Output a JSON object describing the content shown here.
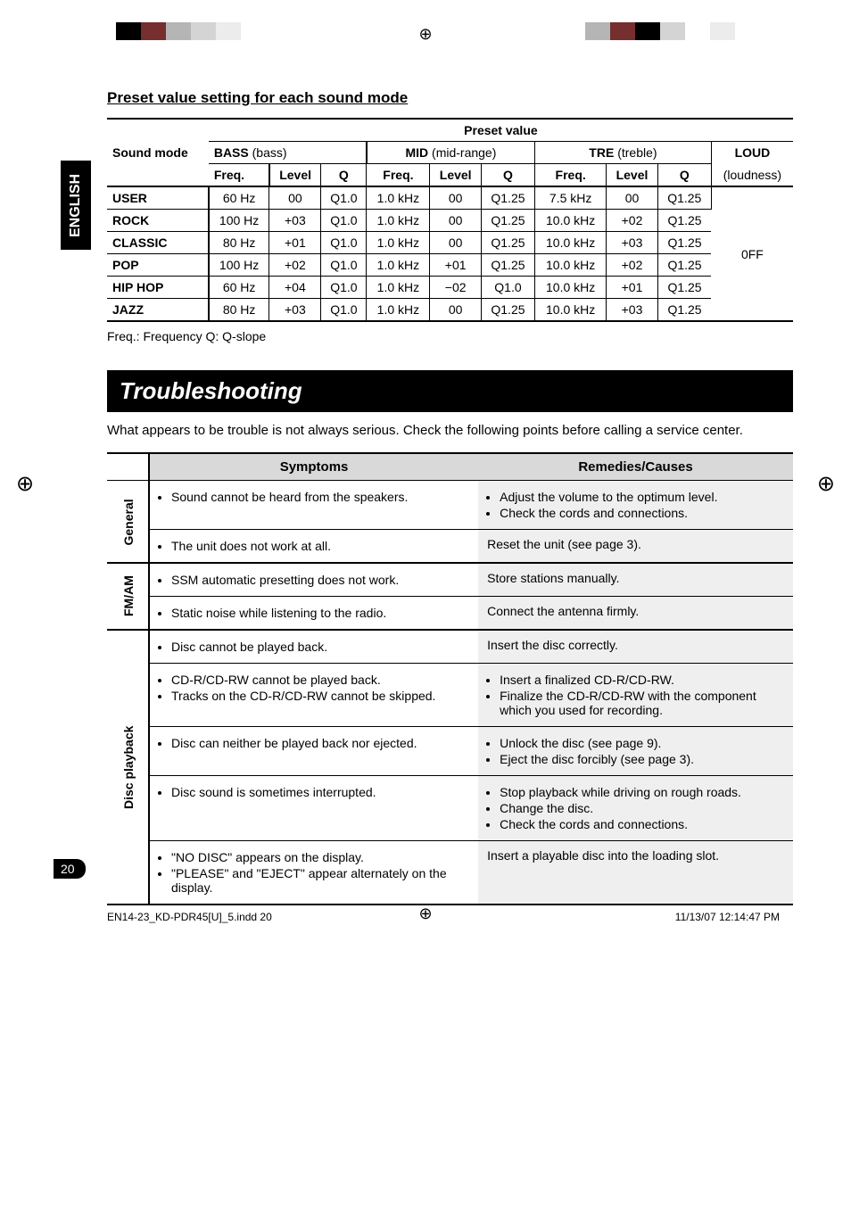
{
  "lang_tab": "ENGLISH",
  "section_title": "Preset value setting for each sound mode",
  "preset_table": {
    "header_left": "Sound mode",
    "header_top": "Preset value",
    "groups": [
      "BASS",
      "MID",
      "TRE"
    ],
    "group_suffix": [
      "(bass)",
      "(mid-range)",
      "(treble)"
    ],
    "loud_header": "LOUD",
    "loud_sub": "(loudness)",
    "subheaders": [
      "Freq.",
      "Level",
      "Q"
    ],
    "rows": [
      {
        "mode": "USER",
        "bass": [
          "60 Hz",
          "00",
          "Q1.0"
        ],
        "mid": [
          "1.0 kHz",
          "00",
          "Q1.25"
        ],
        "tre": [
          "7.5 kHz",
          "00",
          "Q1.25"
        ]
      },
      {
        "mode": "ROCK",
        "bass": [
          "100 Hz",
          "+03",
          "Q1.0"
        ],
        "mid": [
          "1.0 kHz",
          "00",
          "Q1.25"
        ],
        "tre": [
          "10.0 kHz",
          "+02",
          "Q1.25"
        ]
      },
      {
        "mode": "CLASSIC",
        "bass": [
          "80 Hz",
          "+01",
          "Q1.0"
        ],
        "mid": [
          "1.0 kHz",
          "00",
          "Q1.25"
        ],
        "tre": [
          "10.0 kHz",
          "+03",
          "Q1.25"
        ]
      },
      {
        "mode": "POP",
        "bass": [
          "100 Hz",
          "+02",
          "Q1.0"
        ],
        "mid": [
          "1.0 kHz",
          "+01",
          "Q1.25"
        ],
        "tre": [
          "10.0 kHz",
          "+02",
          "Q1.25"
        ]
      },
      {
        "mode": "HIP HOP",
        "bass": [
          "60 Hz",
          "+04",
          "Q1.0"
        ],
        "mid": [
          "1.0 kHz",
          "−02",
          "Q1.0"
        ],
        "tre": [
          "10.0 kHz",
          "+01",
          "Q1.25"
        ]
      },
      {
        "mode": "JAZZ",
        "bass": [
          "80 Hz",
          "+03",
          "Q1.0"
        ],
        "mid": [
          "1.0 kHz",
          "00",
          "Q1.25"
        ],
        "tre": [
          "10.0 kHz",
          "+03",
          "Q1.25"
        ]
      }
    ],
    "loud_value": "0FF",
    "footnote": "Freq.: Frequency    Q: Q-slope"
  },
  "troubleshooting": {
    "title": "Troubleshooting",
    "intro": "What appears to be trouble is not always serious. Check the following points before calling a service center.",
    "headers": [
      "Symptoms",
      "Remedies/Causes"
    ],
    "categories": [
      {
        "name": "General",
        "rows": [
          {
            "symptoms": [
              "Sound cannot be heard from the speakers."
            ],
            "remedies": [
              "Adjust the volume to the optimum level.",
              "Check the cords and connections."
            ]
          },
          {
            "symptoms": [
              "The unit does not work at all."
            ],
            "remedies_text": "Reset the unit (see page 3)."
          }
        ]
      },
      {
        "name": "FM/AM",
        "rows": [
          {
            "symptoms": [
              "SSM automatic presetting does not work."
            ],
            "remedies_text": "Store stations manually."
          },
          {
            "symptoms": [
              "Static noise while listening to the radio."
            ],
            "remedies_text": "Connect the antenna firmly."
          }
        ]
      },
      {
        "name": "Disc playback",
        "rows": [
          {
            "symptoms": [
              "Disc cannot be played back."
            ],
            "remedies_text": "Insert the disc correctly."
          },
          {
            "symptoms": [
              "CD-R/CD-RW cannot be played back.",
              "Tracks on the CD-R/CD-RW cannot be skipped."
            ],
            "remedies": [
              "Insert a finalized CD-R/CD-RW.",
              "Finalize the CD-R/CD-RW with the component which you used for recording."
            ]
          },
          {
            "symptoms": [
              "Disc can neither be played back nor ejected."
            ],
            "remedies": [
              "Unlock the disc (see page 9).",
              "Eject the disc forcibly (see page 3)."
            ]
          },
          {
            "symptoms": [
              "Disc sound is sometimes interrupted."
            ],
            "remedies": [
              "Stop playback while driving on rough roads.",
              "Change the disc.",
              "Check the cords and connections."
            ]
          },
          {
            "symptoms": [
              "\"NO DISC\" appears on the display.",
              "\"PLEASE\" and \"EJECT\" appear alternately on the display."
            ],
            "remedies_text": "Insert a playable disc into the loading slot."
          }
        ]
      }
    ]
  },
  "page_number": "20",
  "footer_left": "EN14-23_KD-PDR45[U]_5.indd   20",
  "footer_right": "11/13/07   12:14:47 PM",
  "bar_colors_left": [
    "#000000",
    "#752f2f",
    "#b5b5b5",
    "#d4d4d4",
    "#ececec"
  ],
  "bar_colors_right": [
    "#b5b5b5",
    "#752f2f",
    "#000000",
    "#d4d4d4",
    "#ffffff",
    "#ececec"
  ]
}
